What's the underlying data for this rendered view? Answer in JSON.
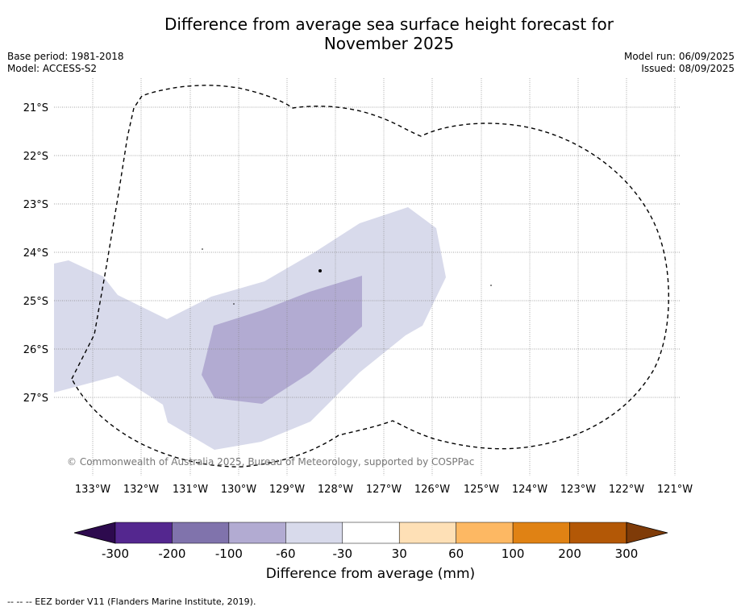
{
  "header": {
    "title_line1": "Difference from average sea surface height forecast for",
    "title_line2": "November 2025",
    "base_period": "Base period: 1981-2018",
    "model": "Model: ACCESS-S2",
    "model_run": "Model run: 06/09/2025",
    "issued": "Issued: 08/09/2025"
  },
  "map": {
    "lat_labels": [
      "21°S",
      "22°S",
      "23°S",
      "24°S",
      "25°S",
      "26°S",
      "27°S"
    ],
    "lon_labels": [
      "133°W",
      "132°W",
      "131°W",
      "130°W",
      "129°W",
      "128°W",
      "127°W",
      "126°W",
      "125°W",
      "124°W",
      "123°W",
      "122°W",
      "121°W"
    ],
    "copyright": "© Commonwealth of Australia 2025, Bureau of Meteorology, supported by COSPPac",
    "grid": true
  },
  "colorbar": {
    "labels": [
      "-300",
      "-200",
      "-100",
      "-60",
      "-30",
      "30",
      "60",
      "100",
      "200",
      "300"
    ],
    "colors": [
      "#2d0a4e",
      "#54278f",
      "#8073ac",
      "#b2abd2",
      "#d8daeb",
      "#ffffff",
      "#fee0b6",
      "#fdb863",
      "#e08214",
      "#b35806",
      "#7f3b08"
    ],
    "label": "Difference from average (mm)"
  },
  "footer": {
    "legend_text": "--  --  -- EEZ border V11 (Flanders Marine Institute, 2019)."
  }
}
